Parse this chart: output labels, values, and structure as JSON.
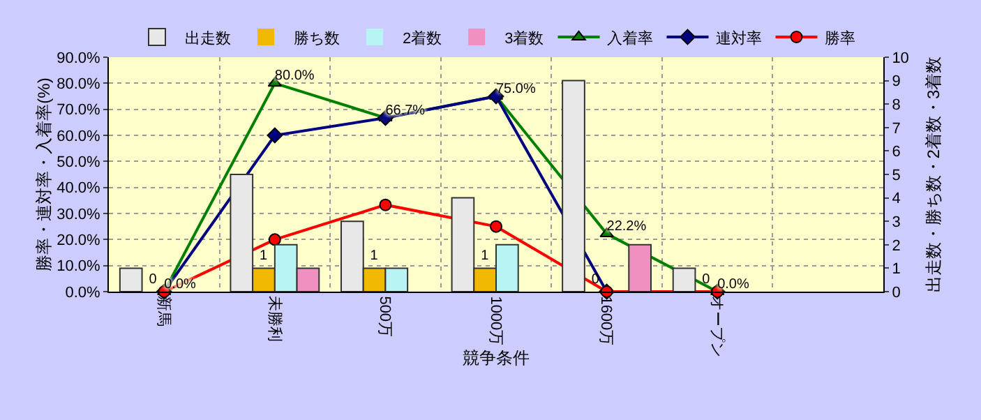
{
  "chart_data": {
    "type": "bar",
    "xlabel": "競争条件",
    "ylabel": "勝率・連対率・入着率(%)",
    "y2label": "出走数・勝ち数・2着数・3着数",
    "categories": [
      "新馬",
      "未勝利",
      "500万",
      "1000万",
      "1600万",
      "オープン",
      null
    ],
    "series": [
      {
        "name": "出走数",
        "type": "bar",
        "axis": "y2",
        "color": "#e8e8e8",
        "values": [
          1,
          5,
          3,
          4,
          9,
          1,
          null
        ]
      },
      {
        "name": "勝ち数",
        "type": "bar",
        "axis": "y2",
        "color": "#f0b800",
        "values": [
          0,
          1,
          1,
          1,
          0,
          0,
          null
        ],
        "value_labels": [
          "0",
          "1",
          "1",
          "1",
          "0",
          "0",
          null
        ]
      },
      {
        "name": "2着数",
        "type": "bar",
        "axis": "y2",
        "color": "#b8f4f4",
        "values": [
          0,
          2,
          1,
          2,
          0,
          0,
          null
        ]
      },
      {
        "name": "3着数",
        "type": "bar",
        "axis": "y2",
        "color": "#f090c0",
        "values": [
          0,
          1,
          0,
          0,
          2,
          0,
          null
        ]
      },
      {
        "name": "入着率",
        "type": "line",
        "color": "#008000",
        "marker": "triangle",
        "values": [
          0,
          80,
          66.7,
          75,
          22.2,
          0,
          null
        ],
        "value_labels": [
          "0.0%",
          "80.0%",
          "66.7%",
          "75.0%",
          "22.2%",
          "0.0%",
          null
        ]
      },
      {
        "name": "連対率",
        "type": "line",
        "color": "#000080",
        "marker": "diamond",
        "values": [
          0,
          60,
          66.7,
          75,
          0,
          0,
          null
        ]
      },
      {
        "name": "勝率",
        "type": "line",
        "color": "#ff0000",
        "marker": "circle",
        "values": [
          0,
          20,
          33.3,
          25,
          0,
          0,
          null
        ]
      }
    ],
    "ylim": [
      0,
      90
    ],
    "yticks": [
      {
        "value": 0,
        "label": "0.0%"
      },
      {
        "value": 10,
        "label": "10.0%"
      },
      {
        "value": 20,
        "label": "20.0%"
      },
      {
        "value": 30,
        "label": "30.0%"
      },
      {
        "value": 40,
        "label": "40.0%"
      },
      {
        "value": 50,
        "label": "50.0%"
      },
      {
        "value": 60,
        "label": "60.0%"
      },
      {
        "value": 70,
        "label": "70.0%"
      },
      {
        "value": 80,
        "label": "80.0%"
      },
      {
        "value": 90,
        "label": "90.0%"
      }
    ],
    "y2lim": [
      0,
      10
    ],
    "y2ticks": [
      0,
      1,
      2,
      3,
      4,
      5,
      6,
      7,
      8,
      9,
      10
    ],
    "grid": true,
    "legend": "top",
    "line_style": "solid"
  }
}
